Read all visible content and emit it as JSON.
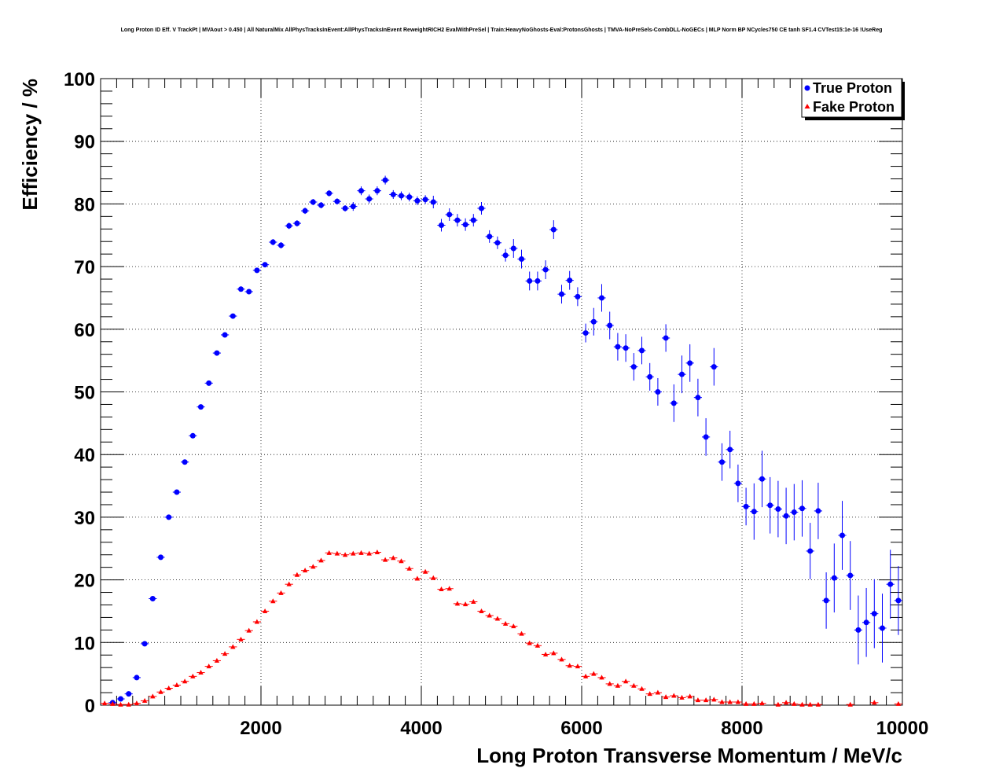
{
  "chart_data": {
    "type": "scatter",
    "title": "Long Proton ID Eff. V TrackPt | MVAout > 0.450 | All NaturalMix AllPhysTracksInEvent:AllPhysTracksInEvent ReweightRICH2 EvalWithPreSel | Train:HeavyNoGhosts-Eval:ProtonsGhosts | TMVA-NoPreSels-CombDLL-NoGECs | MLP Norm BP NCycles750 CE tanh SF1.4 CVTest15:1e-16 !UseReg",
    "xlabel": "Long Proton Transverse Momentum / MeV/c",
    "ylabel": "Efficiency / %",
    "xlim": [
      0,
      10000
    ],
    "ylim": [
      0,
      100
    ],
    "xticks": [
      "2000",
      "4000",
      "6000",
      "8000",
      "10000"
    ],
    "yticks": [
      "0",
      "10",
      "20",
      "30",
      "40",
      "50",
      "60",
      "70",
      "80",
      "90",
      "100"
    ],
    "grid": true,
    "legend_position": "top-right",
    "series": [
      {
        "name": "True Proton",
        "color": "#0000ff",
        "marker": "circle",
        "x_start": 150,
        "x_step": 100,
        "values": [
          0.4,
          1.0,
          1.8,
          4.4,
          9.8,
          17,
          23.6,
          30,
          34,
          38.8,
          43,
          47.6,
          51.4,
          56.2,
          59.1,
          62.1,
          66.4,
          66,
          69.4,
          70.3,
          73.9,
          73.4,
          76.5,
          76.9,
          78.9,
          80.3,
          79.8,
          81.7,
          80.4,
          79.3,
          79.6,
          82.1,
          80.8,
          82.1,
          83.8,
          81.5,
          81.3,
          81.1,
          80.5,
          80.7,
          80.3,
          76.6,
          78.3,
          77.4,
          76.7,
          77.4,
          79.3,
          74.8,
          73.8,
          71.8,
          72.9,
          71.2,
          67.7,
          67.7,
          69.5,
          75.9,
          65.6,
          67.8,
          65.2,
          59.4,
          61.2,
          65,
          60.6,
          57.2,
          57,
          54,
          56.6,
          52.4,
          50,
          58.6,
          48.2,
          52.8,
          54.6,
          49.1,
          42.8,
          54,
          38.8,
          40.8,
          35.4,
          31.7,
          30.9,
          36.1,
          31.9,
          31.3,
          30.2,
          30.8,
          31.4,
          24.6,
          31,
          16.7,
          20.3,
          27.1,
          20.7,
          12,
          13.2,
          14.6,
          12.3,
          19.3,
          16.7
        ],
        "errors": [
          0.2,
          0.2,
          0.2,
          0.2,
          0.2,
          0.2,
          0.2,
          0.2,
          0.2,
          0.2,
          0.3,
          0.3,
          0.3,
          0.3,
          0.3,
          0.3,
          0.3,
          0.3,
          0.3,
          0.3,
          0.5,
          0.5,
          0.5,
          0.5,
          0.5,
          0.5,
          0.5,
          0.5,
          0.5,
          0.5,
          0.7,
          0.7,
          0.7,
          0.7,
          0.7,
          0.7,
          0.7,
          0.7,
          0.7,
          0.7,
          1.0,
          1.0,
          1.0,
          1.0,
          1.0,
          1.0,
          1.0,
          1.0,
          1.0,
          1.0,
          1.5,
          1.5,
          1.5,
          1.5,
          1.5,
          1.5,
          1.5,
          1.5,
          1.5,
          1.5,
          2.2,
          2.2,
          2.2,
          2.2,
          2.2,
          2.2,
          2.2,
          2.2,
          2.2,
          2.2,
          3.0,
          3.0,
          3.0,
          3.0,
          3.0,
          3.0,
          3.0,
          3.0,
          3.0,
          3.0,
          4.5,
          4.5,
          4.5,
          4.5,
          4.5,
          4.5,
          4.5,
          4.5,
          4.5,
          4.5,
          5.5,
          5.5,
          5.5,
          5.5,
          5.5,
          5.5,
          5.5,
          5.5,
          5.5
        ]
      },
      {
        "name": "Fake Proton",
        "color": "#ff0000",
        "marker": "triangle",
        "x": [
          50,
          150,
          250,
          350,
          450,
          550,
          650,
          750,
          850,
          950,
          1050,
          1150,
          1250,
          1350,
          1450,
          1550,
          1650,
          1750,
          1850,
          1950,
          2050,
          2150,
          2250,
          2350,
          2450,
          2550,
          2650,
          2750,
          2850,
          2950,
          3050,
          3150,
          3250,
          3350,
          3450,
          3550,
          3650,
          3750,
          3850,
          3950,
          4050,
          4150,
          4250,
          4350,
          4450,
          4550,
          4650,
          4750,
          4850,
          4950,
          5050,
          5150,
          5250,
          5350,
          5450,
          5550,
          5650,
          5750,
          5850,
          5950,
          6050,
          6150,
          6250,
          6350,
          6450,
          6550,
          6650,
          6750,
          6850,
          6950,
          7050,
          7150,
          7250,
          7350,
          7450,
          7550,
          7650,
          7750,
          7850,
          7950,
          8050,
          8150,
          8250,
          8450,
          8550,
          8650,
          8750,
          8850,
          8950,
          9350,
          9650,
          9950
        ],
        "values": [
          0.3,
          0.2,
          0.1,
          0.1,
          0.3,
          0.7,
          1.4,
          2.1,
          2.7,
          3.2,
          3.8,
          4.6,
          5.2,
          6.2,
          7.1,
          8.2,
          9.3,
          10.5,
          11.9,
          13.3,
          15,
          16.6,
          17.9,
          19.3,
          20.8,
          21.5,
          22.1,
          23.1,
          24.3,
          24.2,
          24,
          24.2,
          24.3,
          24.2,
          24.4,
          23.2,
          23.5,
          23,
          21.8,
          20.2,
          21.3,
          20.3,
          18.5,
          18.6,
          16.2,
          16.1,
          16.5,
          15,
          14.3,
          13.8,
          13,
          12.6,
          11.4,
          9.9,
          9.5,
          8.1,
          8.3,
          7.3,
          6.3,
          6.2,
          4.6,
          5,
          4.4,
          3.4,
          3.1,
          3.8,
          3.1,
          2.6,
          1.8,
          2,
          1.3,
          1.5,
          1.2,
          1.4,
          0.8,
          0.8,
          0.9,
          0.5,
          0.5,
          0.5,
          0.2,
          0.2,
          0.3,
          0.1,
          0.4,
          0.2,
          0.1,
          0.1,
          0.1,
          0.1,
          0.4,
          0.2
        ],
        "error": 0.3
      }
    ]
  }
}
